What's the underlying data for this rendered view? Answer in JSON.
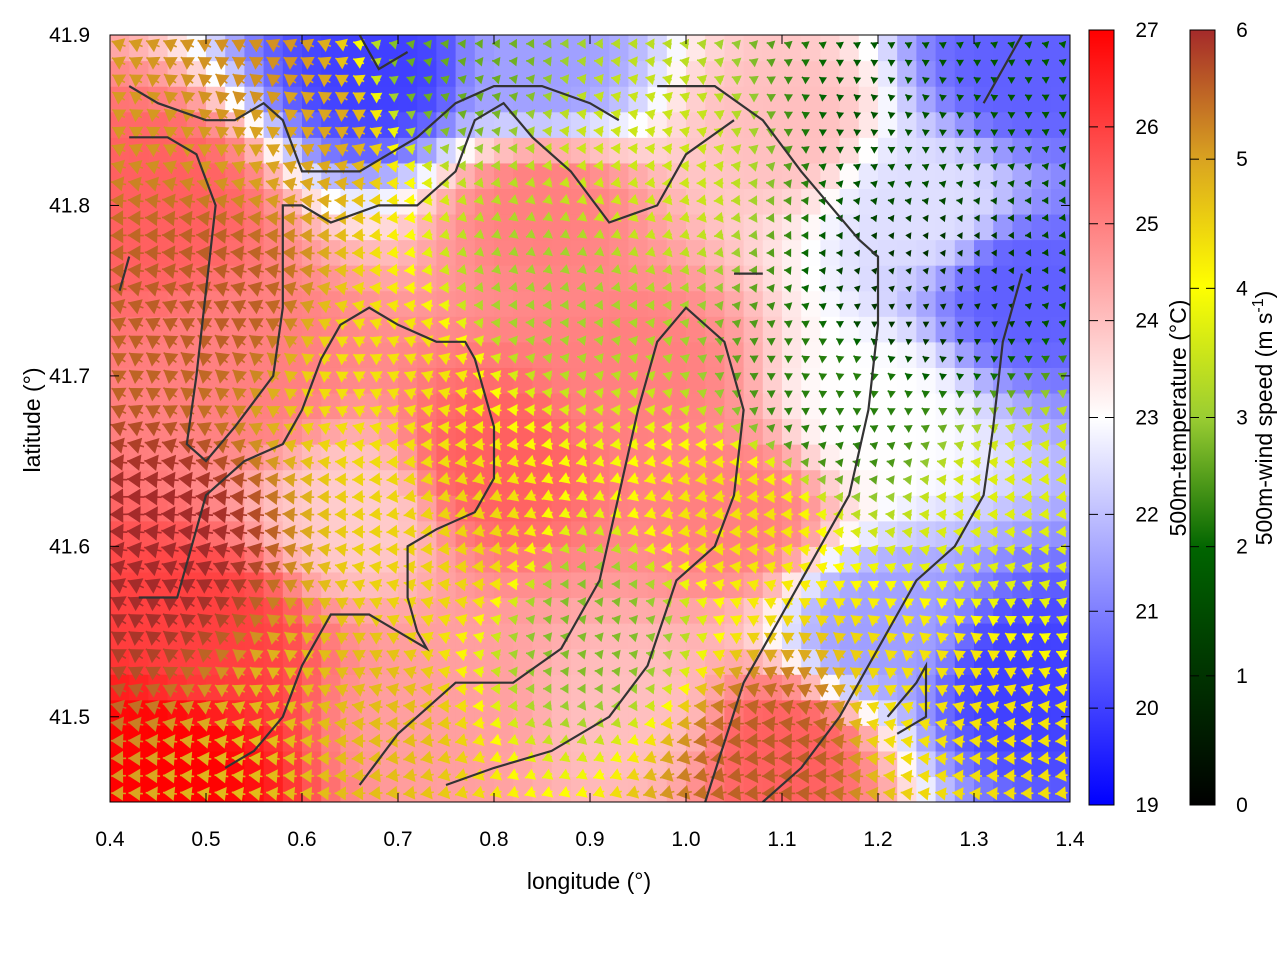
{
  "chart_data": {
    "type": "heatmap",
    "title": "",
    "xlabel": "longitude (°)",
    "ylabel": "latitude (°)",
    "xlim": [
      0.4,
      1.4
    ],
    "ylim": [
      41.45,
      41.9
    ],
    "x_ticks": [
      "0.4",
      "0.5",
      "0.6",
      "0.7",
      "0.8",
      "0.9",
      "1.0",
      "1.1",
      "1.2",
      "1.3",
      "1.4"
    ],
    "y_ticks": [
      "41.5",
      "41.6",
      "41.7",
      "41.8",
      "41.9"
    ],
    "grid": false,
    "temperature": {
      "label": "500m-temperature (°C)",
      "range": [
        19,
        27
      ],
      "ticks": [
        "19",
        "20",
        "21",
        "22",
        "23",
        "24",
        "25",
        "26",
        "27"
      ],
      "colormap": [
        "#0000ff",
        "#ffffff",
        "#ff0000"
      ],
      "field_samples": [
        {
          "lon": 0.45,
          "lat": 41.47,
          "value": 27.0
        },
        {
          "lon": 0.5,
          "lat": 41.55,
          "value": 26.0
        },
        {
          "lon": 0.45,
          "lat": 41.8,
          "value": 25.5
        },
        {
          "lon": 0.55,
          "lat": 41.7,
          "value": 25.0
        },
        {
          "lon": 0.8,
          "lat": 41.65,
          "value": 25.5
        },
        {
          "lon": 0.85,
          "lat": 41.8,
          "value": 25.0
        },
        {
          "lon": 0.95,
          "lat": 41.7,
          "value": 25.0
        },
        {
          "lon": 1.05,
          "lat": 41.62,
          "value": 25.0
        },
        {
          "lon": 0.75,
          "lat": 41.5,
          "value": 24.5
        },
        {
          "lon": 0.95,
          "lat": 41.5,
          "value": 24.0
        },
        {
          "lon": 1.1,
          "lat": 41.85,
          "value": 24.0
        },
        {
          "lon": 1.1,
          "lat": 41.48,
          "value": 25.5
        },
        {
          "lon": 1.2,
          "lat": 41.55,
          "value": 21.5
        },
        {
          "lon": 1.25,
          "lat": 41.8,
          "value": 22.5
        },
        {
          "lon": 1.35,
          "lat": 41.75,
          "value": 20.5
        },
        {
          "lon": 1.35,
          "lat": 41.52,
          "value": 20.0
        },
        {
          "lon": 1.35,
          "lat": 41.88,
          "value": 20.5
        },
        {
          "lon": 0.68,
          "lat": 41.88,
          "value": 20.0
        },
        {
          "lon": 0.85,
          "lat": 41.88,
          "value": 21.5
        },
        {
          "lon": 1.2,
          "lat": 41.68,
          "value": 23.0
        },
        {
          "lon": 0.65,
          "lat": 41.62,
          "value": 23.8
        }
      ]
    },
    "wind": {
      "label": "500m-wind speed (m s-1)",
      "label_text": "500m-wind speed (m s",
      "label_exponent": "-1",
      "label_close": ")",
      "range": [
        0,
        6
      ],
      "ticks": [
        "0",
        "1",
        "2",
        "3",
        "4",
        "5",
        "6"
      ],
      "colormap": [
        "#000000",
        "#006400",
        "#9acd32",
        "#ffff00",
        "#daa520",
        "#a52a2a"
      ],
      "speed_samples": [
        {
          "lon": 0.45,
          "lat": 41.6,
          "value": 6.0
        },
        {
          "lon": 0.5,
          "lat": 41.75,
          "value": 5.5
        },
        {
          "lon": 0.6,
          "lat": 41.85,
          "value": 4.8
        },
        {
          "lon": 0.7,
          "lat": 41.7,
          "value": 4.0
        },
        {
          "lon": 0.75,
          "lat": 41.6,
          "value": 4.2
        },
        {
          "lon": 0.65,
          "lat": 41.5,
          "value": 4.5
        },
        {
          "lon": 0.85,
          "lat": 41.75,
          "value": 2.5
        },
        {
          "lon": 0.9,
          "lat": 41.55,
          "value": 2.2
        },
        {
          "lon": 0.95,
          "lat": 41.82,
          "value": 3.0
        },
        {
          "lon": 1.05,
          "lat": 41.62,
          "value": 4.0
        },
        {
          "lon": 1.1,
          "lat": 41.48,
          "value": 5.5
        },
        {
          "lon": 1.25,
          "lat": 41.5,
          "value": 4.0
        },
        {
          "lon": 1.25,
          "lat": 41.75,
          "value": 0.6
        },
        {
          "lon": 1.25,
          "lat": 41.85,
          "value": 1.0
        },
        {
          "lon": 1.35,
          "lat": 41.62,
          "value": 3.2
        },
        {
          "lon": 0.75,
          "lat": 41.88,
          "value": 2.0
        },
        {
          "lon": 1.15,
          "lat": 41.68,
          "value": 1.5
        },
        {
          "lon": 0.55,
          "lat": 41.88,
          "value": 5.0
        }
      ],
      "direction": "mostly westward (easterly flow)"
    },
    "contours": [
      [
        [
          0.42,
          41.87
        ],
        [
          0.45,
          41.86
        ],
        [
          0.5,
          41.85
        ],
        [
          0.53,
          41.85
        ],
        [
          0.56,
          41.86
        ],
        [
          0.58,
          41.85
        ],
        [
          0.6,
          41.82
        ],
        [
          0.62,
          41.82
        ],
        [
          0.66,
          41.82
        ],
        [
          0.69,
          41.83
        ],
        [
          0.72,
          41.84
        ],
        [
          0.76,
          41.86
        ],
        [
          0.8,
          41.87
        ],
        [
          0.85,
          41.87
        ],
        [
          0.9,
          41.86
        ],
        [
          0.93,
          41.85
        ]
      ],
      [
        [
          0.42,
          41.84
        ],
        [
          0.46,
          41.84
        ],
        [
          0.49,
          41.83
        ],
        [
          0.51,
          41.8
        ],
        [
          0.5,
          41.75
        ],
        [
          0.49,
          41.7
        ],
        [
          0.48,
          41.66
        ],
        [
          0.5,
          41.65
        ],
        [
          0.53,
          41.67
        ],
        [
          0.57,
          41.7
        ],
        [
          0.58,
          41.74
        ],
        [
          0.58,
          41.8
        ],
        [
          0.6,
          41.8
        ],
        [
          0.63,
          41.79
        ],
        [
          0.68,
          41.8
        ],
        [
          0.72,
          41.8
        ],
        [
          0.76,
          41.82
        ],
        [
          0.78,
          41.85
        ],
        [
          0.81,
          41.86
        ],
        [
          0.84,
          41.84
        ],
        [
          0.88,
          41.82
        ],
        [
          0.92,
          41.79
        ],
        [
          0.97,
          41.8
        ],
        [
          1.0,
          41.83
        ],
        [
          1.05,
          41.85
        ]
      ],
      [
        [
          0.41,
          41.75
        ],
        [
          0.42,
          41.77
        ]
      ],
      [
        [
          0.43,
          41.57
        ],
        [
          0.47,
          41.57
        ],
        [
          0.5,
          41.63
        ],
        [
          0.54,
          41.65
        ],
        [
          0.58,
          41.66
        ],
        [
          0.6,
          41.68
        ],
        [
          0.62,
          41.71
        ],
        [
          0.64,
          41.73
        ],
        [
          0.67,
          41.74
        ],
        [
          0.7,
          41.73
        ],
        [
          0.74,
          41.72
        ],
        [
          0.77,
          41.72
        ],
        [
          0.78,
          41.71
        ],
        [
          0.79,
          41.69
        ],
        [
          0.8,
          41.67
        ],
        [
          0.8,
          41.64
        ],
        [
          0.78,
          41.62
        ],
        [
          0.74,
          41.61
        ],
        [
          0.71,
          41.6
        ],
        [
          0.71,
          41.57
        ],
        [
          0.72,
          41.55
        ],
        [
          0.73,
          41.54
        ],
        [
          0.7,
          41.55
        ],
        [
          0.67,
          41.56
        ],
        [
          0.63,
          41.56
        ],
        [
          0.6,
          41.53
        ],
        [
          0.58,
          41.5
        ],
        [
          0.55,
          41.48
        ],
        [
          0.52,
          41.47
        ]
      ],
      [
        [
          0.66,
          41.46
        ],
        [
          0.7,
          41.49
        ],
        [
          0.76,
          41.52
        ],
        [
          0.82,
          41.52
        ],
        [
          0.87,
          41.54
        ],
        [
          0.91,
          41.58
        ],
        [
          0.93,
          41.63
        ],
        [
          0.95,
          41.68
        ],
        [
          0.97,
          41.72
        ],
        [
          1.0,
          41.74
        ],
        [
          1.04,
          41.72
        ],
        [
          1.06,
          41.68
        ],
        [
          1.05,
          41.63
        ],
        [
          1.03,
          41.6
        ],
        [
          0.99,
          41.58
        ],
        [
          0.96,
          41.53
        ],
        [
          0.92,
          41.5
        ],
        [
          0.86,
          41.48
        ],
        [
          0.8,
          41.47
        ],
        [
          0.75,
          41.46
        ]
      ],
      [
        [
          1.02,
          41.45
        ],
        [
          1.06,
          41.52
        ],
        [
          1.1,
          41.56
        ],
        [
          1.14,
          41.6
        ],
        [
          1.17,
          41.63
        ],
        [
          1.19,
          41.68
        ],
        [
          1.2,
          41.73
        ],
        [
          1.2,
          41.77
        ],
        [
          1.18,
          41.78
        ],
        [
          1.15,
          41.8
        ],
        [
          1.12,
          41.82
        ],
        [
          1.08,
          41.85
        ],
        [
          1.03,
          41.87
        ],
        [
          0.97,
          41.87
        ]
      ],
      [
        [
          1.21,
          41.5
        ],
        [
          1.24,
          41.52
        ],
        [
          1.25,
          41.53
        ],
        [
          1.25,
          41.5
        ],
        [
          1.22,
          41.49
        ]
      ],
      [
        [
          1.35,
          41.76
        ],
        [
          1.33,
          41.72
        ],
        [
          1.32,
          41.67
        ],
        [
          1.31,
          41.63
        ],
        [
          1.28,
          41.6
        ],
        [
          1.24,
          41.58
        ],
        [
          1.2,
          41.54
        ],
        [
          1.16,
          41.5
        ],
        [
          1.12,
          41.47
        ],
        [
          1.08,
          41.45
        ]
      ],
      [
        [
          1.31,
          41.86
        ],
        [
          1.33,
          41.88
        ],
        [
          1.35,
          41.9
        ]
      ],
      [
        [
          0.66,
          41.9
        ],
        [
          0.68,
          41.88
        ],
        [
          0.71,
          41.89
        ]
      ],
      [
        [
          1.05,
          41.76
        ],
        [
          1.08,
          41.76
        ]
      ]
    ]
  }
}
